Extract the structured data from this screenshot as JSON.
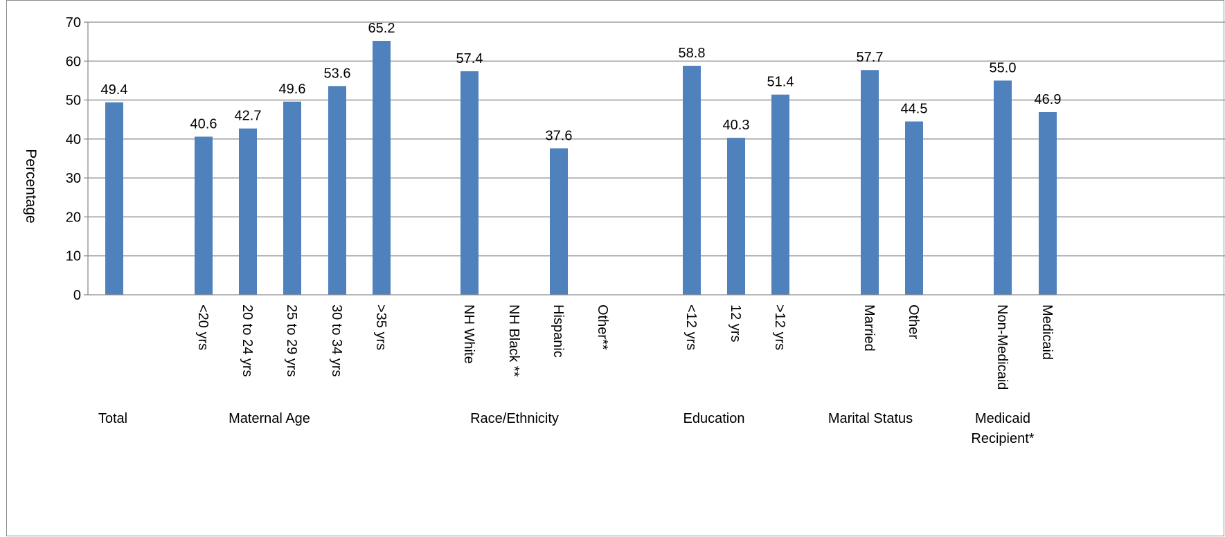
{
  "chart_data": {
    "type": "bar",
    "ylabel": "Percentage",
    "xlabel": "",
    "title": "",
    "ylim": [
      0,
      70
    ],
    "yticks": [
      0,
      10,
      20,
      30,
      40,
      50,
      60,
      70
    ],
    "grid": true,
    "legend": "none",
    "bar_color": "#4F81BD",
    "categories": [
      "",
      "<20 yrs",
      "20 to 24 yrs",
      "25 to 29 yrs",
      "30 to 34 yrs",
      ">35 yrs",
      "NH White",
      "NH Black **",
      "Hispanic",
      "Other**",
      "<12 yrs",
      "12 yrs",
      ">12 yrs",
      "Married",
      "Other",
      "Non-Medicaid",
      "Medicaid"
    ],
    "groups": [
      {
        "label": "Total",
        "categories": [
          ""
        ]
      },
      {
        "label": "Maternal Age",
        "categories": [
          "<20 yrs",
          "20 to 24 yrs",
          "25 to 29 yrs",
          "30 to 34 yrs",
          ">35 yrs"
        ]
      },
      {
        "label": "Race/Ethnicity",
        "categories": [
          "NH White",
          "NH Black **",
          "Hispanic",
          "Other**"
        ]
      },
      {
        "label": "Education",
        "categories": [
          "<12 yrs",
          "12 yrs",
          ">12 yrs"
        ]
      },
      {
        "label": "Marital Status",
        "categories": [
          "Married",
          "Other"
        ]
      },
      {
        "label": "Medicaid Recipient*",
        "categories": [
          "Non-Medicaid",
          "Medicaid"
        ]
      }
    ],
    "values": [
      49.4,
      40.6,
      42.7,
      49.6,
      53.6,
      65.2,
      57.4,
      null,
      37.6,
      null,
      58.8,
      40.3,
      51.4,
      57.7,
      44.5,
      55.0,
      46.9
    ],
    "data_labels": [
      "49.4",
      "40.6",
      "42.7",
      "49.6",
      "53.6",
      "65.2",
      "57.4",
      "",
      "37.6",
      "",
      "58.8",
      "40.3",
      "51.4",
      "57.7",
      "44.5",
      "55.0",
      "46.9"
    ]
  }
}
